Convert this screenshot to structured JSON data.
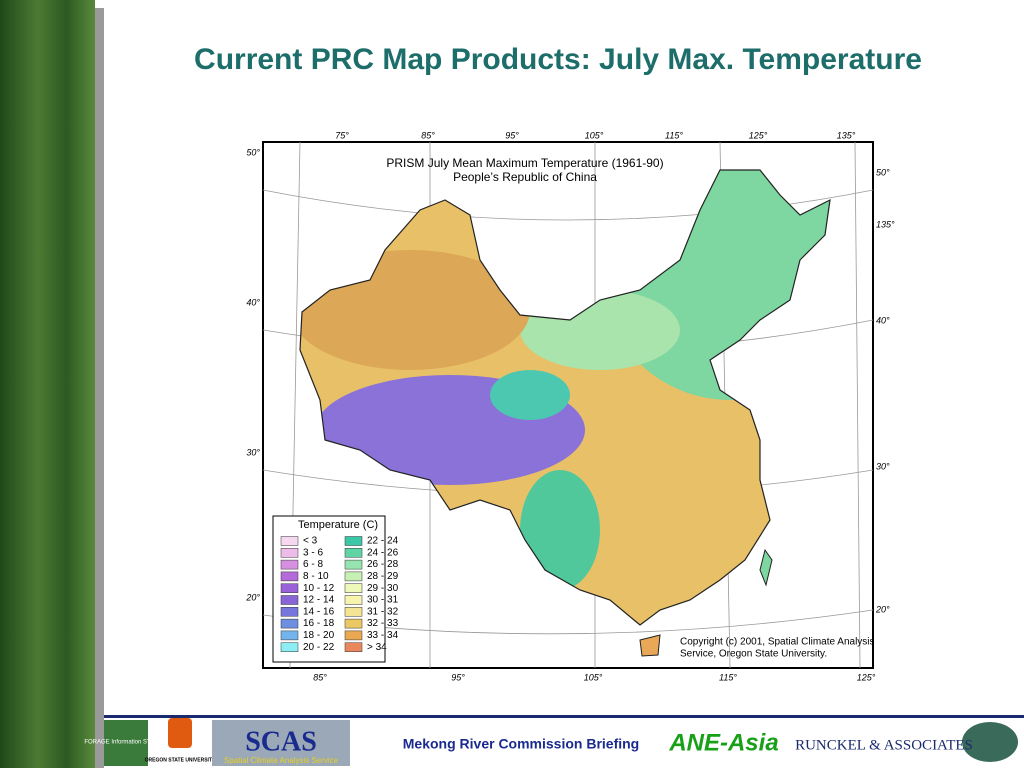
{
  "slide": {
    "title": "Current PRC Map Products: July Max. Temperature",
    "map": {
      "title": "PRISM July Mean Maximum Temperature (1961-90)",
      "subtitle": "People’s Republic of China",
      "top_labels": [
        "75°",
        "85°",
        "95°",
        "105°",
        "115°",
        "125°",
        "135°"
      ],
      "left_labels": [
        "50°",
        "40°",
        "30°",
        "20°"
      ],
      "right_labels": [
        "50°",
        "135°",
        "40°",
        "30°",
        "20°"
      ],
      "bottom_labels": [
        "85°",
        "95°",
        "105°",
        "115°",
        "125°"
      ],
      "copyright": [
        "Copyright (c) 2001,  Spatial Climate Analysis",
        "Service, Oregon State University."
      ],
      "legend": {
        "title": "Temperature (C)",
        "items": [
          {
            "label": "< 3",
            "color": "#f6d8f0"
          },
          {
            "label": "3 - 6",
            "color": "#eebce8"
          },
          {
            "label": "6 - 8",
            "color": "#d690e0"
          },
          {
            "label": "8 - 10",
            "color": "#b46ad8"
          },
          {
            "label": "10 - 12",
            "color": "#9a62d8"
          },
          {
            "label": "12 - 14",
            "color": "#8866d8"
          },
          {
            "label": "14 - 16",
            "color": "#7676dc"
          },
          {
            "label": "16 - 18",
            "color": "#6e8ee0"
          },
          {
            "label": "18 - 20",
            "color": "#74b4ec"
          },
          {
            "label": "20 - 22",
            "color": "#8ceef4"
          },
          {
            "label": "22 - 24",
            "color": "#3cc8a8"
          },
          {
            "label": "24 - 26",
            "color": "#60d4a4"
          },
          {
            "label": "26 - 28",
            "color": "#96e4b0"
          },
          {
            "label": "28 - 29",
            "color": "#c8f0b4"
          },
          {
            "label": "29 - 30",
            "color": "#eef8b8"
          },
          {
            "label": "30 - 31",
            "color": "#f8f4b0"
          },
          {
            "label": "31 - 32",
            "color": "#f4e494"
          },
          {
            "label": "32 - 33",
            "color": "#ecc864"
          },
          {
            "label": "33 - 34",
            "color": "#eaa850"
          },
          {
            "label": "> 34",
            "color": "#e8885c"
          }
        ]
      }
    },
    "footer": {
      "briefing": "Mekong River Commission Briefing",
      "ane": "ANE-Asia",
      "runckel": "RUNCKEL & ASSOCIATES",
      "scas": "SCAS",
      "scas_sub": "Spatial Climate Analysis Service",
      "osu": "OREGON STATE UNIVERSITY",
      "forage": "FORAGE Information SYSTEM"
    }
  }
}
